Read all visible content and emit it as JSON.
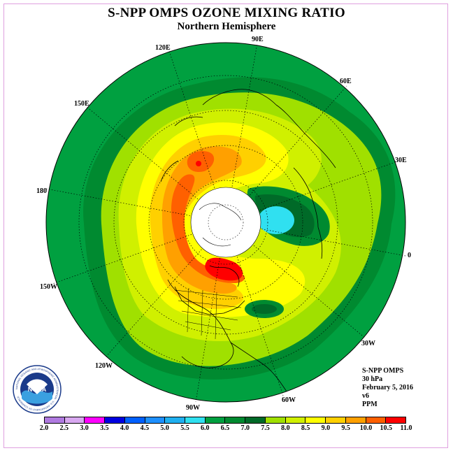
{
  "title": "S-NPP OMPS OZONE MIXING RATIO",
  "subtitle": "Northern Hemisphere",
  "longitude_labels": [
    "90E",
    "60E",
    "30E",
    "0",
    "30W",
    "60W",
    "90W",
    "120W",
    "150W",
    "180",
    "150E",
    "120E"
  ],
  "info": {
    "instrument": "S-NPP OMPS",
    "level": "30 hPa",
    "date": "February 5, 2016",
    "version": "v6",
    "units": "PPM"
  },
  "logo": {
    "text": "NOAA",
    "ring_text": "NATIONAL OCEANIC AND ATMOSPHERIC ADMINISTRATION · U.S. DEPARTMENT OF COMMERCE"
  },
  "colorbar": {
    "ticks": [
      "2.0",
      "2.5",
      "3.0",
      "3.5",
      "4.0",
      "4.5",
      "5.0",
      "5.5",
      "6.0",
      "6.5",
      "7.0",
      "7.5",
      "8.0",
      "8.5",
      "9.0",
      "9.5",
      "10.0",
      "10.5",
      "11.0"
    ],
    "colors": [
      "#b07ae0",
      "#d8a8f0",
      "#ff00ff",
      "#0000e0",
      "#0060ff",
      "#1e90ff",
      "#20b0f0",
      "#30e0f0",
      "#00a040",
      "#008a30",
      "#006a28",
      "#a0e000",
      "#d0f000",
      "#ffff00",
      "#ffd000",
      "#ffa000",
      "#ff6000",
      "#ff0000",
      "#8b4513"
    ]
  }
}
